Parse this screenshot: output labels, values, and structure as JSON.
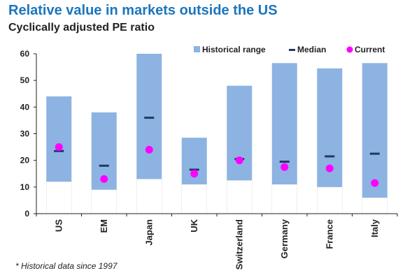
{
  "header": {
    "title": "Relative value in markets outside the US",
    "subtitle": "Cyclically adjusted PE ratio"
  },
  "footnote": "* Historical data since 1997",
  "colors": {
    "range": "#8db3e2",
    "median": "#1f3864",
    "current": "#ff00ff",
    "axis": "#222222"
  },
  "chart_data": {
    "type": "bar",
    "subtype": "range-with-markers",
    "categories": [
      "US",
      "EM",
      "Japan",
      "UK",
      "Switzerland",
      "Germany",
      "France",
      "Italy"
    ],
    "ylim": [
      0,
      60
    ],
    "yticks": [
      0,
      10,
      20,
      30,
      40,
      50,
      60
    ],
    "grid": false,
    "legend_position": "top-right",
    "series": [
      {
        "name": "Historical range",
        "low": [
          12,
          9,
          13,
          11,
          12.5,
          11,
          10,
          6
        ],
        "high": [
          44,
          38,
          60,
          28.5,
          48,
          56.5,
          54.5,
          56.5
        ]
      },
      {
        "name": "Median",
        "values": [
          23.5,
          18,
          36,
          16.5,
          20.5,
          19.5,
          21.5,
          22.5
        ]
      },
      {
        "name": "Current",
        "values": [
          25,
          13,
          24,
          15,
          20,
          17.5,
          17,
          11.5
        ]
      }
    ]
  }
}
